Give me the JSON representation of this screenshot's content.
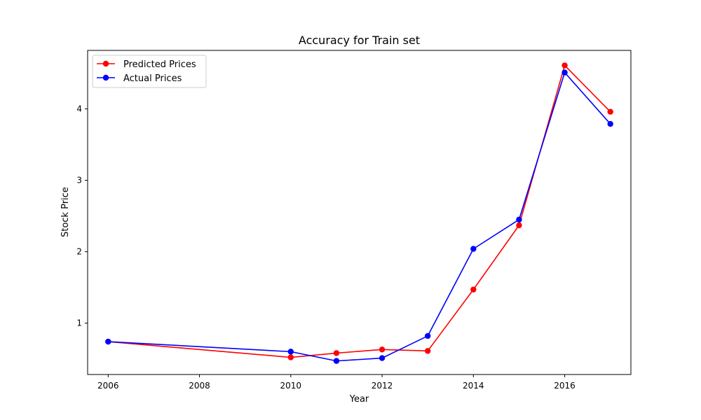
{
  "chart_data": {
    "type": "line",
    "title": "Accuracy for Train set",
    "xlabel": "Year",
    "ylabel": "Stock Price",
    "xlim": [
      2005.55,
      2017.45
    ],
    "ylim": [
      0.28,
      4.82
    ],
    "xticks": [
      2006,
      2008,
      2010,
      2012,
      2014,
      2016
    ],
    "yticks": [
      1,
      2,
      3,
      4
    ],
    "grid": false,
    "legend_position": "upper-left",
    "series": [
      {
        "name": "Predicted Prices",
        "color": "#ff0000",
        "marker": "circle",
        "x": [
          2006,
          2010,
          2011,
          2012,
          2013,
          2014,
          2015,
          2016,
          2017
        ],
        "y": [
          0.74,
          0.52,
          0.58,
          0.63,
          0.61,
          1.47,
          2.37,
          4.61,
          3.96
        ]
      },
      {
        "name": "Actual Prices",
        "color": "#0000ff",
        "marker": "circle",
        "x": [
          2006,
          2010,
          2011,
          2012,
          2013,
          2014,
          2015,
          2016,
          2017
        ],
        "y": [
          0.74,
          0.6,
          0.47,
          0.51,
          0.82,
          2.04,
          2.45,
          4.51,
          3.79
        ]
      }
    ]
  }
}
